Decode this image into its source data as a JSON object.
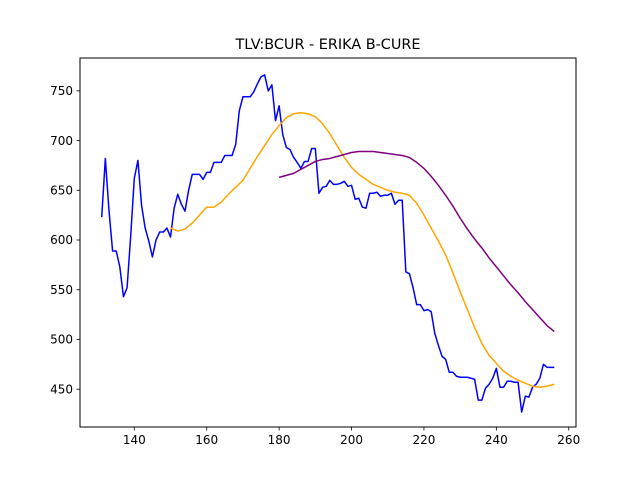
{
  "chart_data": {
    "type": "line",
    "title": "TLV:BCUR - ERIKA B-CURE",
    "xlabel": "",
    "ylabel": "",
    "xlim": [
      125,
      262
    ],
    "ylim": [
      412,
      783
    ],
    "xticks": [
      140,
      160,
      180,
      200,
      220,
      240,
      260
    ],
    "yticks": [
      450,
      500,
      550,
      600,
      650,
      700,
      750
    ],
    "grid": false,
    "series": [
      {
        "color": "#0000ff",
        "x": [
          131,
          132,
          133,
          134,
          135,
          136,
          137,
          138,
          139,
          140,
          141,
          142,
          143,
          144,
          145,
          146,
          147,
          148,
          149,
          150,
          151,
          152,
          153,
          154,
          155,
          156,
          157,
          158,
          159,
          160,
          161,
          162,
          163,
          164,
          165,
          166,
          167,
          168,
          169,
          170,
          171,
          172,
          173,
          174,
          175,
          176,
          177,
          178,
          179,
          180,
          181,
          182,
          183,
          184,
          185,
          186,
          187,
          188,
          189,
          190,
          191,
          192,
          193,
          194,
          195,
          196,
          197,
          198,
          199,
          200,
          201,
          202,
          203,
          204,
          205,
          206,
          207,
          208,
          209,
          210,
          211,
          212,
          213,
          214,
          215,
          216,
          217,
          218,
          219,
          220,
          221,
          222,
          223,
          224,
          225,
          226,
          227,
          228,
          229,
          230,
          231,
          232,
          233,
          234,
          235,
          236,
          237,
          238,
          239,
          240,
          241,
          242,
          243,
          244,
          245,
          246,
          247,
          248,
          249,
          250,
          251,
          252,
          253,
          254,
          255,
          256
        ],
        "y": [
          623,
          682,
          630,
          589,
          589,
          573,
          543,
          552,
          604,
          662,
          680,
          635,
          612,
          599,
          583,
          600,
          608,
          608,
          612,
          603,
          632,
          646,
          636,
          629,
          650,
          666,
          666,
          666,
          661,
          668,
          668,
          678,
          678,
          678,
          685,
          685,
          685,
          696,
          730,
          744,
          744,
          744,
          749,
          757,
          764,
          766,
          750,
          756,
          720,
          735,
          706,
          693,
          691,
          683,
          678,
          672,
          679,
          679,
          692,
          692,
          647,
          653,
          654,
          660,
          656,
          656,
          657,
          659,
          654,
          655,
          641,
          642,
          633,
          632,
          647,
          647,
          648,
          644,
          645,
          645,
          647,
          636,
          640,
          640,
          568,
          566,
          552,
          535,
          535,
          529,
          530,
          528,
          506,
          494,
          483,
          480,
          467,
          467,
          463,
          462,
          462,
          462,
          461,
          460,
          439,
          439,
          451,
          455,
          461,
          471,
          452,
          452,
          458,
          458,
          457,
          457,
          427,
          443,
          442,
          452,
          455,
          461,
          475,
          472,
          472,
          472
        ]
      },
      {
        "color": "#ffa500",
        "x": [
          150,
          152,
          154,
          156,
          158,
          160,
          162,
          164,
          166,
          168,
          170,
          172,
          174,
          176,
          178,
          180,
          182,
          184,
          186,
          188,
          190,
          192,
          194,
          196,
          198,
          200,
          202,
          204,
          206,
          208,
          210,
          212,
          214,
          216,
          218,
          220,
          222,
          224,
          226,
          228,
          230,
          232,
          234,
          236,
          238,
          240,
          242,
          244,
          246,
          248,
          250,
          252,
          254,
          256
        ],
        "y": [
          612,
          609,
          611,
          617,
          625,
          633,
          633,
          638,
          646,
          653,
          660,
          672,
          684,
          695,
          706,
          715,
          723,
          727,
          728,
          727,
          724,
          717,
          707,
          695,
          683,
          673,
          666,
          661,
          656,
          653,
          650,
          648,
          647,
          645,
          637,
          625,
          612,
          599,
          585,
          567,
          548,
          530,
          512,
          496,
          484,
          476,
          468,
          463,
          459,
          456,
          453,
          452,
          453,
          455
        ]
      },
      {
        "color": "#800080",
        "x": [
          180,
          182,
          184,
          186,
          188,
          190,
          192,
          194,
          196,
          198,
          200,
          202,
          204,
          206,
          208,
          210,
          212,
          214,
          216,
          218,
          220,
          222,
          224,
          226,
          228,
          230,
          232,
          234,
          236,
          238,
          240,
          242,
          244,
          246,
          248,
          250,
          252,
          254,
          256
        ],
        "y": [
          663,
          665,
          667,
          671,
          675,
          679,
          681,
          682,
          684,
          686,
          688,
          689,
          689,
          689,
          688,
          687,
          686,
          685,
          683,
          678,
          672,
          664,
          655,
          645,
          634,
          622,
          611,
          601,
          592,
          582,
          573,
          564,
          555,
          547,
          538,
          530,
          522,
          514,
          508
        ]
      }
    ]
  }
}
